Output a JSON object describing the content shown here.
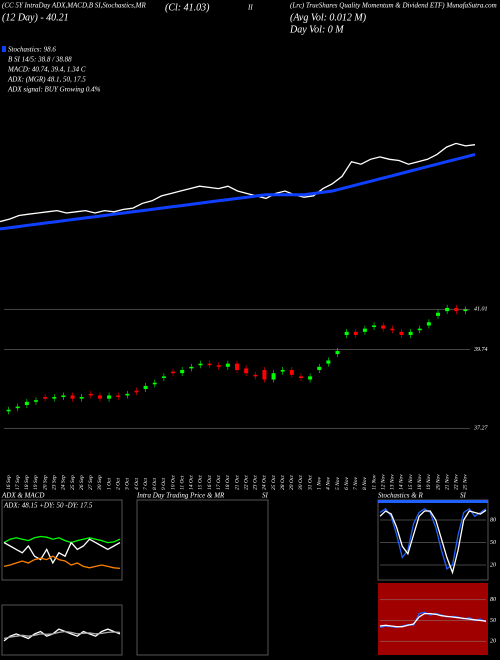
{
  "header": {
    "top_left": "(CC 5Y IntraDay ADX,MACD,B SI,Stochastics,MR",
    "close": "(Cl: 41.03)",
    "ii": "II",
    "title": "(Lrc) TrueShares Quality Momentum & Dividend ETF) MunafaSutra.com",
    "day": "(12 Day) - 40.21",
    "avg_vol": "(Avg Vol: 0.012 M)",
    "day_vol": "Day Vol: 0  M",
    "stats": [
      "Stochastics: 98.6",
      "B SI 14/5: 38.8 / 38.88",
      "MACD: 40.74, 39.4, 1.34 C",
      "ADX: (MGR) 48.1, 50, 17.5",
      "ADX signal: BUY Growing 0.4%"
    ]
  },
  "chart_data": [
    {
      "type": "candlestick",
      "categories": [
        "16 Sep",
        "17 Sep",
        "18 Sep",
        "19 Sep",
        "20 Sep",
        "23 Sep",
        "24 Sep",
        "25 Sep",
        "26 Sep",
        "27 Sep",
        "30 Sep",
        "1 Oct",
        "2 Oct",
        "3 Oct",
        "4 Oct",
        "7 Oct",
        "8 Oct",
        "9 Oct",
        "10 Oct",
        "11 Oct",
        "14 Oct",
        "15 Oct",
        "16 Oct",
        "17 Oct",
        "18 Oct",
        "21 Oct",
        "22 Oct",
        "23 Oct",
        "24 Oct",
        "25 Oct",
        "28 Oct",
        "29 Oct",
        "30 Oct",
        "31 Oct",
        "1 Nov",
        "4 Nov",
        "5 Nov",
        "6 Nov",
        "7 Nov",
        "8 Nov",
        "11 Nov",
        "12 Nov",
        "13 Nov",
        "14 Nov",
        "15 Nov",
        "18 Nov",
        "19 Nov",
        "20 Nov",
        "21 Nov",
        "22 Nov",
        "25 Nov"
      ],
      "open": [
        37.8,
        37.9,
        38.0,
        38.1,
        38.25,
        38.2,
        38.25,
        38.3,
        38.2,
        38.35,
        38.3,
        38.2,
        38.3,
        38.3,
        38.45,
        38.5,
        38.65,
        38.85,
        39.05,
        39.0,
        39.15,
        39.25,
        39.3,
        39.25,
        39.2,
        39.3,
        39.15,
        38.95,
        39.1,
        38.8,
        39.05,
        39.1,
        38.9,
        38.8,
        39.1,
        39.3,
        39.6,
        40.2,
        40.3,
        40.3,
        40.45,
        40.5,
        40.4,
        40.3,
        40.2,
        40.35,
        40.5,
        40.8,
        40.95,
        41.05,
        40.95
      ],
      "close": [
        37.85,
        37.95,
        38.1,
        38.15,
        38.2,
        38.25,
        38.3,
        38.2,
        38.25,
        38.3,
        38.2,
        38.3,
        38.25,
        38.35,
        38.4,
        38.6,
        38.7,
        38.9,
        39.0,
        39.1,
        39.2,
        39.3,
        39.25,
        39.2,
        39.3,
        39.1,
        39.0,
        38.9,
        38.8,
        39.0,
        39.1,
        38.95,
        38.85,
        38.9,
        39.2,
        39.4,
        39.7,
        40.3,
        40.2,
        40.4,
        40.5,
        40.4,
        40.35,
        40.2,
        40.3,
        40.4,
        40.6,
        40.9,
        41.05,
        40.95,
        41.0
      ],
      "color_up": "#00ff00",
      "color_down": "#ff0000",
      "ylim": [
        36.9,
        41.3
      ],
      "yticks": [
        41.01,
        39.74,
        37.27
      ],
      "grid": true
    },
    {
      "type": "line",
      "series": [
        {
          "color": "#ffffff",
          "values": [
            37.85,
            37.95,
            38.1,
            38.15,
            38.2,
            38.25,
            38.3,
            38.2,
            38.25,
            38.3,
            38.2,
            38.3,
            38.25,
            38.35,
            38.4,
            38.6,
            38.7,
            38.9,
            39.0,
            39.1,
            39.2,
            39.3,
            39.25,
            39.2,
            39.3,
            39.1,
            39.0,
            38.9,
            38.8,
            39.0,
            39.1,
            38.95,
            38.85,
            38.9,
            39.2,
            39.4,
            39.7,
            40.3,
            40.2,
            40.4,
            40.5,
            40.4,
            40.35,
            40.2,
            40.3,
            40.4,
            40.6,
            40.9,
            41.05,
            40.95,
            41.0
          ]
        },
        {
          "color": "#1040ff",
          "values": [
            37.55,
            37.6,
            37.65,
            37.7,
            37.75,
            37.8,
            37.85,
            37.9,
            37.95,
            38.0,
            38.05,
            38.1,
            38.15,
            38.2,
            38.25,
            38.3,
            38.35,
            38.4,
            38.45,
            38.5,
            38.55,
            38.6,
            38.65,
            38.7,
            38.75,
            38.8,
            38.85,
            38.9,
            38.95,
            38.95,
            38.95,
            38.95,
            38.95,
            39.0,
            39.05,
            39.1,
            39.2,
            39.3,
            39.4,
            39.5,
            39.6,
            39.7,
            39.8,
            39.9,
            40.0,
            40.1,
            40.2,
            40.3,
            40.4,
            40.5,
            40.6
          ]
        }
      ],
      "ylim": [
        37.3,
        41.6
      ]
    },
    {
      "type": "line",
      "title": "ADX & MACD",
      "subtitle": "ADX: 48.15 +DY: 50 -DY: 17.5",
      "series": [
        {
          "color": "#00ff00",
          "values": [
            55,
            60,
            62,
            60,
            58,
            62,
            64,
            63,
            60,
            62,
            58,
            55,
            58,
            60,
            62,
            60,
            58,
            55,
            56,
            60
          ]
        },
        {
          "color": "#ffffff",
          "values": [
            55,
            50,
            45,
            40,
            50,
            35,
            30,
            45,
            25,
            40,
            35,
            55,
            45,
            50,
            60,
            55,
            50,
            45,
            50,
            55
          ]
        },
        {
          "color": "#ff8000",
          "values": [
            20,
            22,
            25,
            28,
            25,
            30,
            32,
            30,
            35,
            30,
            28,
            22,
            25,
            20,
            18,
            20,
            22,
            20,
            18,
            17
          ]
        }
      ],
      "ylim": [
        0,
        100
      ]
    },
    {
      "type": "line",
      "series": [
        {
          "color": "#ffffff",
          "values": [
            30,
            40,
            45,
            40,
            35,
            45,
            50,
            40,
            45,
            55,
            50,
            45,
            40,
            50,
            45,
            40,
            50,
            55,
            50,
            45
          ]
        },
        {
          "color": "#b0b0b0",
          "values": [
            35,
            38,
            40,
            42,
            40,
            42,
            45,
            44,
            45,
            48,
            50,
            48,
            45,
            46,
            47,
            45,
            46,
            48,
            49,
            48
          ]
        }
      ],
      "ylim": [
        0,
        100
      ]
    },
    {
      "type": "line",
      "title": "Intra Day Trading Price & MR",
      "subtitle": "SI"
    },
    {
      "type": "line",
      "title": "Stochastics & R",
      "subtitle": "SI",
      "series": [
        {
          "color": "#2060ff",
          "values": [
            90,
            95,
            85,
            60,
            30,
            40,
            75,
            90,
            95,
            90,
            70,
            40,
            15,
            20,
            60,
            90,
            95,
            85,
            90,
            95
          ]
        },
        {
          "color": "#ffffff",
          "values": [
            85,
            92,
            88,
            70,
            45,
            35,
            60,
            85,
            92,
            92,
            80,
            55,
            30,
            10,
            40,
            80,
            92,
            90,
            88,
            93
          ]
        }
      ],
      "ylim": [
        0,
        100
      ],
      "yticks": [
        80,
        50,
        20
      ],
      "grid": true
    },
    {
      "type": "line",
      "background": "#a00000",
      "series": [
        {
          "color": "#2060ff",
          "values": [
            40,
            42,
            41,
            40,
            42,
            44,
            43,
            60,
            62,
            58,
            60,
            58,
            55,
            56,
            55,
            52,
            54,
            50,
            52,
            48
          ]
        },
        {
          "color": "#ffffff",
          "values": [
            42,
            43,
            42,
            41,
            41,
            43,
            45,
            55,
            60,
            60,
            59,
            57,
            56,
            55,
            54,
            53,
            52,
            51,
            50,
            49
          ]
        }
      ],
      "ylim": [
        0,
        100
      ],
      "yticks": [
        80,
        50,
        20
      ],
      "grid": true
    }
  ]
}
